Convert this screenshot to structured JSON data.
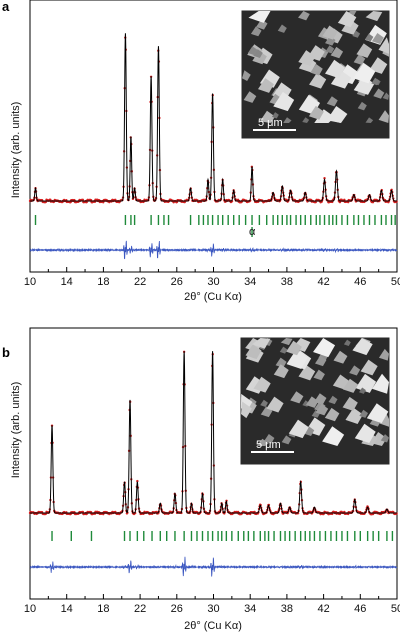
{
  "chart_data": [
    {
      "panel": "a",
      "type": "line",
      "xlabel": "2θ° (Cu Kα)",
      "ylabel": "Intensity (arb. units)",
      "xlim": [
        10,
        50
      ],
      "xticks": [
        10,
        14,
        18,
        22,
        26,
        30,
        34,
        38,
        42,
        46,
        50
      ],
      "yticks": "none",
      "baseline": 0.08,
      "peaks": [
        {
          "x": 10.6,
          "y": 0.06,
          "w": 0.08
        },
        {
          "x": 20.4,
          "y": 0.78,
          "w": 0.09
        },
        {
          "x": 21.0,
          "y": 0.3,
          "w": 0.08
        },
        {
          "x": 21.4,
          "y": 0.06,
          "w": 0.08
        },
        {
          "x": 23.2,
          "y": 0.58,
          "w": 0.09
        },
        {
          "x": 24.0,
          "y": 0.72,
          "w": 0.09
        },
        {
          "x": 27.5,
          "y": 0.06,
          "w": 0.09
        },
        {
          "x": 29.4,
          "y": 0.1,
          "w": 0.08
        },
        {
          "x": 29.9,
          "y": 0.5,
          "w": 0.09
        },
        {
          "x": 31.0,
          "y": 0.1,
          "w": 0.08
        },
        {
          "x": 32.2,
          "y": 0.05,
          "w": 0.08
        },
        {
          "x": 34.2,
          "y": 0.16,
          "w": 0.08
        },
        {
          "x": 36.5,
          "y": 0.04,
          "w": 0.1
        },
        {
          "x": 37.5,
          "y": 0.07,
          "w": 0.1
        },
        {
          "x": 38.4,
          "y": 0.05,
          "w": 0.1
        },
        {
          "x": 40.0,
          "y": 0.04,
          "w": 0.1
        },
        {
          "x": 42.1,
          "y": 0.1,
          "w": 0.1
        },
        {
          "x": 43.4,
          "y": 0.14,
          "w": 0.1
        },
        {
          "x": 45.3,
          "y": 0.03,
          "w": 0.1
        },
        {
          "x": 47.0,
          "y": 0.03,
          "w": 0.1
        },
        {
          "x": 48.3,
          "y": 0.05,
          "w": 0.1
        },
        {
          "x": 49.4,
          "y": 0.05,
          "w": 0.1
        }
      ],
      "reflection_markers": [
        {
          "row": 1,
          "x": [
            10.6,
            20.4,
            21.0,
            21.4,
            23.2,
            24.0,
            24.6,
            25.1,
            27.5,
            28.4,
            28.9,
            29.4,
            29.9,
            30.5,
            31.0,
            31.6,
            32.2,
            32.8,
            33.5,
            34.2,
            35.0,
            35.8,
            36.5,
            37.0,
            37.5,
            38.0,
            38.4,
            39.0,
            39.5,
            40.0,
            40.6,
            41.2,
            41.6,
            42.1,
            42.6,
            43.0,
            43.4,
            44.0,
            44.6,
            45.3,
            45.8,
            46.4,
            47.0,
            47.6,
            48.3,
            48.8,
            49.4,
            49.8
          ]
        },
        {
          "row": 2,
          "x": [
            34.2
          ],
          "label": "α"
        }
      ],
      "inset": {
        "scale_label": "5 μm"
      }
    },
    {
      "panel": "b",
      "type": "line",
      "xlabel": "2θ° (Cu Kα)",
      "ylabel": "Intensity (arb. units)",
      "xlim": [
        10,
        50
      ],
      "xticks": [
        10,
        14,
        18,
        22,
        26,
        30,
        34,
        38,
        42,
        46,
        50
      ],
      "yticks": "none",
      "baseline": 0.07,
      "peaks": [
        {
          "x": 12.4,
          "y": 0.45,
          "w": 0.09
        },
        {
          "x": 20.3,
          "y": 0.16,
          "w": 0.09
        },
        {
          "x": 20.9,
          "y": 0.58,
          "w": 0.09
        },
        {
          "x": 21.7,
          "y": 0.16,
          "w": 0.09
        },
        {
          "x": 24.2,
          "y": 0.05,
          "w": 0.09
        },
        {
          "x": 25.8,
          "y": 0.1,
          "w": 0.09
        },
        {
          "x": 26.8,
          "y": 0.83,
          "w": 0.09
        },
        {
          "x": 27.6,
          "y": 0.05,
          "w": 0.08
        },
        {
          "x": 28.8,
          "y": 0.1,
          "w": 0.09
        },
        {
          "x": 29.9,
          "y": 0.83,
          "w": 0.09
        },
        {
          "x": 30.9,
          "y": 0.05,
          "w": 0.08
        },
        {
          "x": 31.4,
          "y": 0.06,
          "w": 0.08
        },
        {
          "x": 35.1,
          "y": 0.04,
          "w": 0.1
        },
        {
          "x": 36.0,
          "y": 0.04,
          "w": 0.1
        },
        {
          "x": 37.3,
          "y": 0.05,
          "w": 0.1
        },
        {
          "x": 38.3,
          "y": 0.03,
          "w": 0.1
        },
        {
          "x": 39.5,
          "y": 0.16,
          "w": 0.1
        },
        {
          "x": 41.0,
          "y": 0.03,
          "w": 0.1
        },
        {
          "x": 45.4,
          "y": 0.07,
          "w": 0.1
        },
        {
          "x": 46.8,
          "y": 0.03,
          "w": 0.1
        },
        {
          "x": 48.9,
          "y": 0.02,
          "w": 0.1
        }
      ],
      "reflection_markers": [
        {
          "row": 1,
          "x": [
            12.4,
            14.5,
            16.7,
            20.3,
            20.9,
            21.7,
            22.4,
            23.3,
            24.2,
            24.9,
            25.8,
            26.8,
            27.6,
            28.2,
            28.8,
            29.4,
            29.9,
            30.5,
            30.9,
            31.4,
            32.0,
            32.7,
            33.3,
            33.8,
            34.4,
            35.1,
            35.6,
            36.0,
            36.6,
            37.3,
            37.8,
            38.3,
            38.9,
            39.5,
            40.0,
            40.5,
            41.0,
            41.6,
            42.2,
            42.8,
            43.4,
            44.0,
            44.6,
            45.4,
            46.0,
            46.8,
            47.4,
            48.0,
            48.9,
            49.5
          ]
        }
      ],
      "inset": {
        "scale_label": "5 μm"
      }
    }
  ]
}
